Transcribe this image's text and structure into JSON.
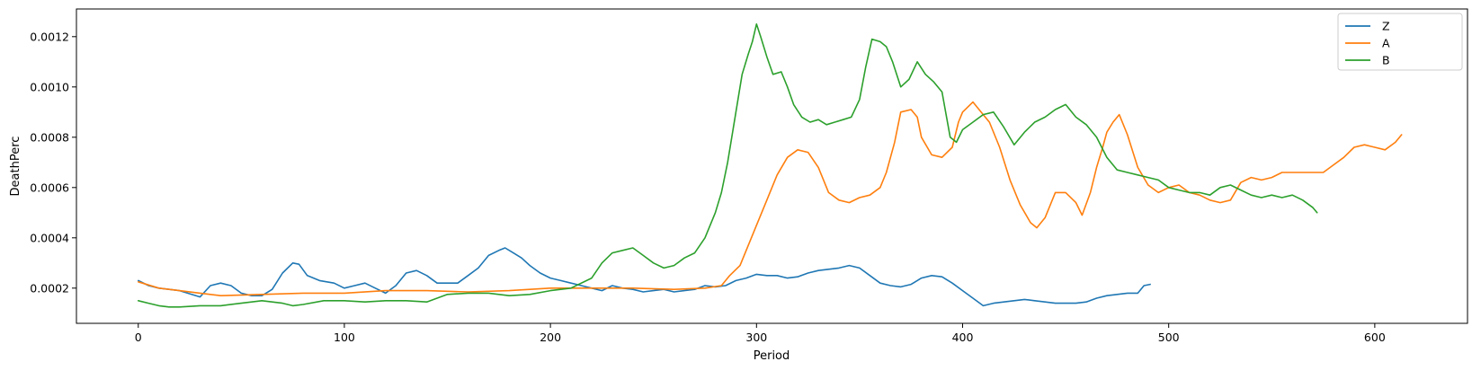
{
  "chart_data": {
    "type": "line",
    "title": "",
    "xlabel": "Period",
    "ylabel": "DeathPerc",
    "xlim": [
      -30,
      645
    ],
    "ylim": [
      6e-05,
      0.00131
    ],
    "xticks": [
      0,
      100,
      200,
      300,
      400,
      500,
      600
    ],
    "xtick_labels": [
      "0",
      "100",
      "200",
      "300",
      "400",
      "500",
      "600"
    ],
    "yticks": [
      0.0002,
      0.0004,
      0.0006,
      0.0008,
      0.001,
      0.0012
    ],
    "ytick_labels": [
      "0.0002",
      "0.0004",
      "0.0006",
      "0.0008",
      "0.0010",
      "0.0012"
    ],
    "grid": false,
    "legend_position": "top-right",
    "series": [
      {
        "name": "Z",
        "color": "#1f77b4",
        "x": [
          0,
          5,
          10,
          20,
          30,
          35,
          40,
          45,
          50,
          55,
          60,
          65,
          70,
          75,
          78,
          82,
          88,
          95,
          100,
          105,
          110,
          115,
          120,
          125,
          130,
          135,
          140,
          145,
          150,
          155,
          160,
          165,
          170,
          175,
          178,
          182,
          186,
          190,
          195,
          200,
          205,
          210,
          215,
          220,
          225,
          230,
          235,
          240,
          245,
          250,
          255,
          260,
          265,
          270,
          275,
          280,
          285,
          290,
          295,
          300,
          305,
          310,
          315,
          320,
          325,
          330,
          335,
          340,
          345,
          350,
          355,
          360,
          365,
          370,
          375,
          380,
          385,
          390,
          395,
          400,
          405,
          410,
          415,
          420,
          425,
          430,
          435,
          440,
          445,
          450,
          455,
          460,
          465,
          470,
          475,
          480,
          485,
          488,
          491
        ],
        "y": [
          0.00023,
          0.00021,
          0.0002,
          0.00019,
          0.000165,
          0.00021,
          0.00022,
          0.00021,
          0.00018,
          0.00017,
          0.00017,
          0.000195,
          0.00026,
          0.0003,
          0.000295,
          0.00025,
          0.00023,
          0.00022,
          0.0002,
          0.00021,
          0.00022,
          0.0002,
          0.00018,
          0.00021,
          0.00026,
          0.00027,
          0.00025,
          0.00022,
          0.00022,
          0.00022,
          0.00025,
          0.00028,
          0.00033,
          0.00035,
          0.00036,
          0.00034,
          0.00032,
          0.00029,
          0.00026,
          0.00024,
          0.00023,
          0.00022,
          0.00021,
          0.0002,
          0.00019,
          0.00021,
          0.0002,
          0.000195,
          0.000185,
          0.00019,
          0.000195,
          0.000185,
          0.00019,
          0.000195,
          0.00021,
          0.000205,
          0.00021,
          0.00023,
          0.00024,
          0.000255,
          0.00025,
          0.00025,
          0.00024,
          0.000245,
          0.00026,
          0.00027,
          0.000275,
          0.00028,
          0.00029,
          0.00028,
          0.00025,
          0.00022,
          0.00021,
          0.000205,
          0.000215,
          0.00024,
          0.00025,
          0.000245,
          0.00022,
          0.00019,
          0.00016,
          0.00013,
          0.00014,
          0.000145,
          0.00015,
          0.000155,
          0.00015,
          0.000145,
          0.00014,
          0.00014,
          0.00014,
          0.000145,
          0.00016,
          0.00017,
          0.000175,
          0.00018,
          0.00018,
          0.00021,
          0.000215
        ]
      },
      {
        "name": "A",
        "color": "#ff7f0e",
        "x": [
          0,
          10,
          20,
          30,
          40,
          60,
          80,
          100,
          120,
          140,
          160,
          180,
          200,
          220,
          240,
          260,
          275,
          283,
          287,
          292,
          300,
          305,
          310,
          315,
          320,
          325,
          330,
          335,
          340,
          345,
          350,
          355,
          360,
          363,
          367,
          370,
          375,
          378,
          380,
          385,
          390,
          395,
          398,
          400,
          405,
          410,
          413,
          418,
          423,
          428,
          433,
          436,
          440,
          445,
          450,
          455,
          458,
          462,
          465,
          468,
          470,
          473,
          476,
          480,
          485,
          490,
          495,
          500,
          505,
          510,
          515,
          520,
          525,
          530,
          535,
          540,
          545,
          550,
          555,
          560,
          565,
          570,
          575,
          580,
          585,
          590,
          595,
          600,
          605,
          610,
          613
        ],
        "y": [
          0.000225,
          0.0002,
          0.00019,
          0.00018,
          0.00017,
          0.000175,
          0.00018,
          0.00018,
          0.00019,
          0.00019,
          0.000185,
          0.00019,
          0.0002,
          0.0002,
          0.0002,
          0.000195,
          0.0002,
          0.00021,
          0.00025,
          0.00029,
          0.00045,
          0.00055,
          0.00065,
          0.00072,
          0.00075,
          0.00074,
          0.00068,
          0.00058,
          0.00055,
          0.00054,
          0.00056,
          0.00057,
          0.0006,
          0.00066,
          0.00078,
          0.0009,
          0.00091,
          0.00088,
          0.0008,
          0.00073,
          0.00072,
          0.00076,
          0.00086,
          0.0009,
          0.00094,
          0.00089,
          0.00086,
          0.00076,
          0.00063,
          0.00053,
          0.00046,
          0.00044,
          0.00048,
          0.00058,
          0.00058,
          0.00054,
          0.00049,
          0.00058,
          0.00068,
          0.00076,
          0.00082,
          0.00086,
          0.00089,
          0.00081,
          0.00068,
          0.00061,
          0.00058,
          0.0006,
          0.00061,
          0.00058,
          0.00057,
          0.00055,
          0.00054,
          0.00055,
          0.00062,
          0.00064,
          0.00063,
          0.00064,
          0.00066,
          0.00066,
          0.00066,
          0.00066,
          0.00066,
          0.00069,
          0.00072,
          0.00076,
          0.00077,
          0.00076,
          0.00075,
          0.00078,
          0.00081
        ]
      },
      {
        "name": "B",
        "color": "#2ca02c",
        "x": [
          0,
          5,
          10,
          15,
          20,
          30,
          40,
          50,
          60,
          70,
          75,
          80,
          90,
          100,
          110,
          120,
          130,
          140,
          150,
          160,
          170,
          180,
          190,
          200,
          210,
          220,
          225,
          230,
          235,
          240,
          245,
          250,
          255,
          260,
          265,
          270,
          275,
          280,
          283,
          286,
          290,
          293,
          296,
          298,
          300,
          302,
          305,
          308,
          312,
          315,
          318,
          322,
          326,
          330,
          334,
          338,
          342,
          346,
          350,
          353,
          356,
          360,
          363,
          366,
          370,
          374,
          378,
          382,
          386,
          390,
          394,
          397,
          400,
          405,
          410,
          415,
          420,
          425,
          430,
          435,
          440,
          445,
          450,
          455,
          460,
          465,
          470,
          475,
          480,
          485,
          490,
          495,
          500,
          505,
          510,
          515,
          520,
          525,
          530,
          535,
          540,
          545,
          550,
          555,
          560,
          565,
          570,
          572
        ],
        "y": [
          0.00015,
          0.00014,
          0.00013,
          0.000125,
          0.000125,
          0.00013,
          0.00013,
          0.00014,
          0.00015,
          0.00014,
          0.00013,
          0.000135,
          0.00015,
          0.00015,
          0.000145,
          0.00015,
          0.00015,
          0.000145,
          0.000175,
          0.00018,
          0.00018,
          0.00017,
          0.000175,
          0.00019,
          0.0002,
          0.00024,
          0.0003,
          0.00034,
          0.00035,
          0.00036,
          0.00033,
          0.0003,
          0.00028,
          0.00029,
          0.00032,
          0.00034,
          0.0004,
          0.0005,
          0.00058,
          0.0007,
          0.0009,
          0.00105,
          0.00113,
          0.00118,
          0.00125,
          0.0012,
          0.00112,
          0.00105,
          0.00106,
          0.001,
          0.00093,
          0.00088,
          0.00086,
          0.00087,
          0.00085,
          0.00086,
          0.00087,
          0.00088,
          0.00095,
          0.00108,
          0.00119,
          0.00118,
          0.00116,
          0.0011,
          0.001,
          0.00103,
          0.0011,
          0.00105,
          0.00102,
          0.00098,
          0.0008,
          0.00078,
          0.00083,
          0.00086,
          0.00089,
          0.0009,
          0.00084,
          0.00077,
          0.00082,
          0.00086,
          0.00088,
          0.00091,
          0.00093,
          0.00088,
          0.00085,
          0.0008,
          0.00072,
          0.00067,
          0.00066,
          0.00065,
          0.00064,
          0.00063,
          0.0006,
          0.00059,
          0.00058,
          0.00058,
          0.00057,
          0.0006,
          0.00061,
          0.00059,
          0.00057,
          0.00056,
          0.00057,
          0.00056,
          0.00057,
          0.00055,
          0.00052,
          0.0005
        ]
      }
    ]
  }
}
